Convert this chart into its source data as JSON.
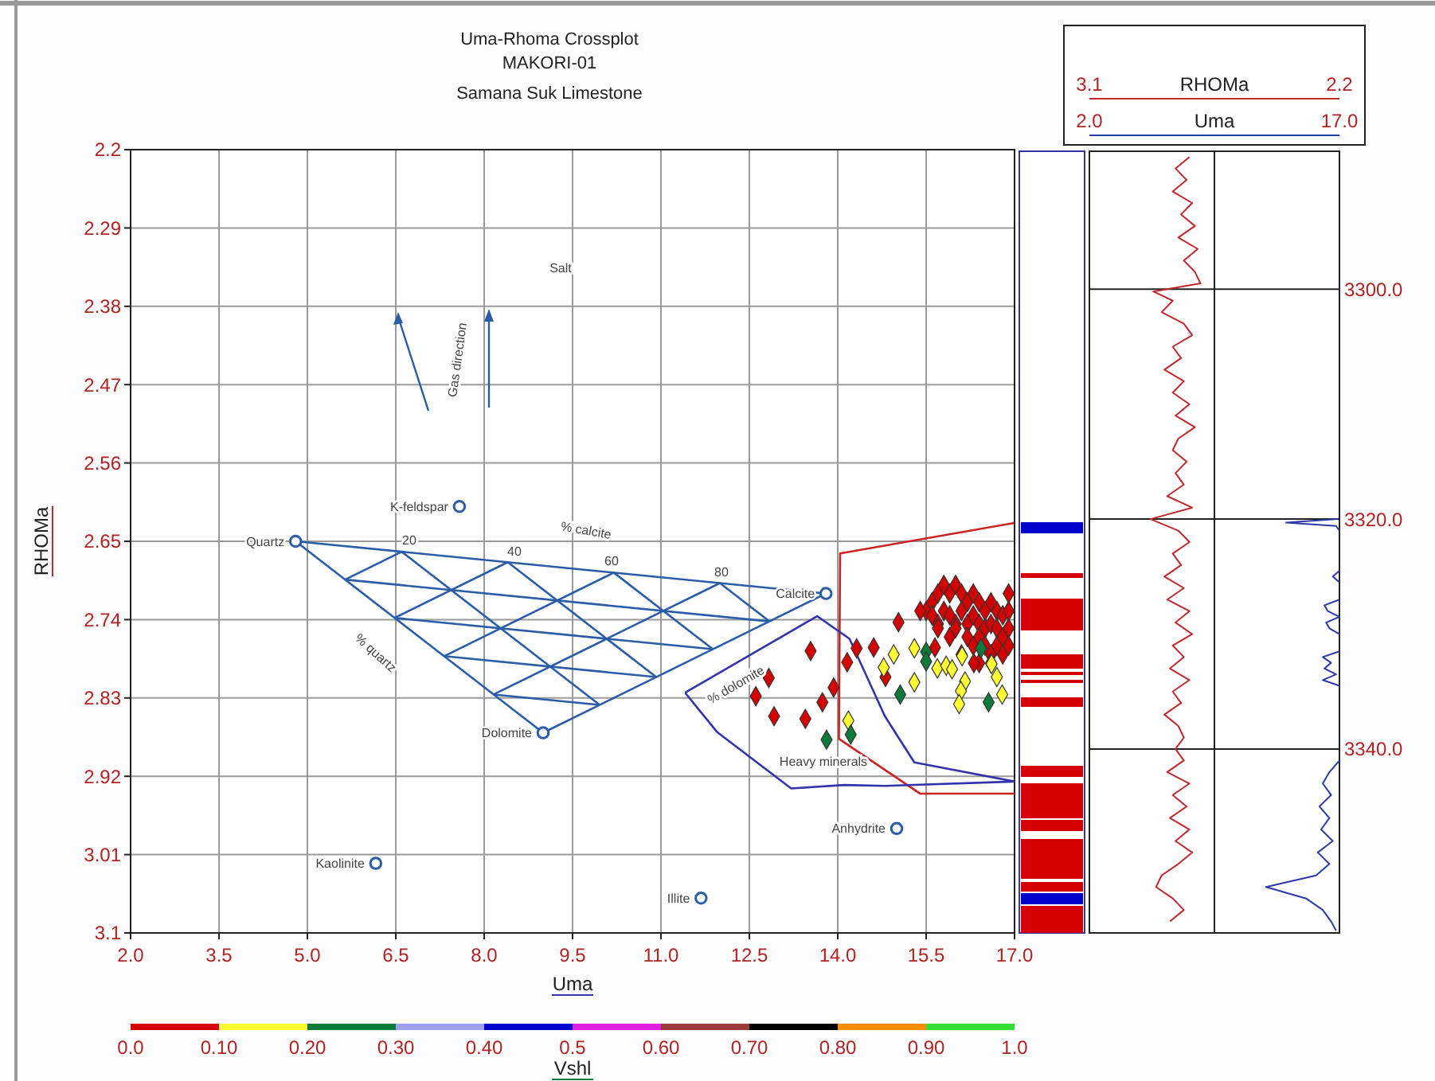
{
  "chart_data": [
    {
      "type": "scatter",
      "title": "Uma-Rhoma Crossplot",
      "subtitle": "MAKORI-01",
      "xlabel": "Uma",
      "ylabel": "RHOMa",
      "clabel": "Vshl",
      "grid": true,
      "xlim": [
        2.0,
        17.0
      ],
      "ylim": [
        3.1,
        2.2
      ],
      "xticks": [
        {
          "value": 2,
          "label": "2.0"
        },
        3.5,
        {
          "value": 5,
          "label": "5.0"
        },
        6.5,
        {
          "value": 8,
          "label": "8.0"
        },
        9.5,
        {
          "value": 11,
          "label": "11.0"
        },
        12.5,
        {
          "value": 14,
          "label": "14.0"
        },
        15.5,
        {
          "value": 17,
          "label": "17.0"
        }
      ],
      "yticks": [
        2.2,
        2.29,
        2.38,
        2.47,
        2.56,
        2.65,
        2.74,
        2.83,
        2.92,
        3.01,
        3.1
      ],
      "clim": [
        0,
        1
      ],
      "cticks": [
        {
          "value": 0,
          "label": "0.0"
        },
        {
          "value": 0.1,
          "label": "0.10"
        },
        {
          "value": 0.2,
          "label": "0.20"
        },
        {
          "value": 0.3,
          "label": "0.30"
        },
        {
          "value": 0.4,
          "label": "0.40"
        },
        0.5,
        {
          "value": 0.6,
          "label": "0.60"
        },
        {
          "value": 0.7,
          "label": "0.70"
        },
        {
          "value": 0.8,
          "label": "0.80"
        },
        {
          "value": 0.9,
          "label": "0.90"
        },
        {
          "value": 1,
          "label": "1.0"
        }
      ],
      "annotations": [
        "Samana Suk Limestone",
        "Salt",
        "Heavy minerals",
        "Gas direction",
        "% calcite",
        "% quartz",
        "% dolomite",
        "20",
        "40",
        "60",
        "80"
      ],
      "series": [
        {
          "type": "line",
          "color": "#2a5ca8",
          "x": [
            4.8,
            13.8
          ],
          "values": [
            2.65,
            2.71
          ]
        },
        {
          "type": "line",
          "color": "#2a5ca8",
          "x": [
            9.0,
            13.8
          ],
          "values": [
            2.87,
            2.71
          ]
        },
        {
          "type": "line",
          "color": "#2a5ca8",
          "x": [
            4.8,
            9.0
          ],
          "values": [
            2.65,
            2.87
          ]
        },
        {
          "type": "line",
          "color": "#2a5ca8",
          "x": [
            6.6,
            9.96
          ],
          "values": [
            2.662,
            2.838
          ]
        },
        {
          "type": "line",
          "color": "#2a5ca8",
          "x": [
            8.4,
            10.92
          ],
          "values": [
            2.674,
            2.806
          ]
        },
        {
          "type": "line",
          "color": "#2a5ca8",
          "x": [
            10.2,
            11.88
          ],
          "values": [
            2.686,
            2.774
          ]
        },
        {
          "type": "line",
          "color": "#2a5ca8",
          "x": [
            12.0,
            12.84
          ],
          "values": [
            2.698,
            2.742
          ]
        },
        {
          "type": "line",
          "color": "#2a5ca8",
          "x": [
            8.16,
            12.0
          ],
          "values": [
            2.826,
            2.698
          ]
        },
        {
          "type": "line",
          "color": "#2a5ca8",
          "x": [
            7.32,
            10.2
          ],
          "values": [
            2.782,
            2.686
          ]
        },
        {
          "type": "line",
          "color": "#2a5ca8",
          "x": [
            6.48,
            8.4
          ],
          "values": [
            2.738,
            2.674
          ]
        },
        {
          "type": "line",
          "color": "#2a5ca8",
          "x": [
            5.64,
            6.6
          ],
          "values": [
            2.694,
            2.662
          ]
        },
        {
          "type": "line",
          "color": "#2a5ca8",
          "x": [
            5.64,
            12.84
          ],
          "values": [
            2.694,
            2.742
          ]
        },
        {
          "type": "line",
          "color": "#2a5ca8",
          "x": [
            6.48,
            11.88
          ],
          "values": [
            2.738,
            2.774
          ]
        },
        {
          "type": "line",
          "color": "#2a5ca8",
          "x": [
            7.32,
            10.92
          ],
          "values": [
            2.782,
            2.806
          ]
        },
        {
          "type": "line",
          "color": "#2a5ca8",
          "x": [
            8.16,
            9.96
          ],
          "values": [
            2.826,
            2.838
          ]
        },
        {
          "type": "line",
          "color": "#cc2222",
          "x": [
            16.99,
            14.04,
            14.02,
            15.4,
            17.0
          ],
          "values": [
            2.629,
            2.664,
            2.877,
            2.94,
            2.94
          ]
        },
        {
          "type": "line",
          "color": "#3333aa",
          "x": [
            11.41,
            13.65,
            14.2,
            14.8,
            15.3,
            17.0
          ],
          "values": [
            2.824,
            2.736,
            2.762,
            2.851,
            2.904,
            2.926
          ]
        },
        {
          "type": "line",
          "color": "#3333aa",
          "x": [
            11.41,
            11.95,
            13.21,
            14.11,
            14.8,
            17.0
          ],
          "values": [
            2.824,
            2.869,
            2.934,
            2.93,
            2.931,
            2.926
          ]
        },
        {
          "type": "scatter",
          "name": "Quartz",
          "color": "#2a5ca8",
          "marker": "circle",
          "x": [
            4.8
          ],
          "values": [
            2.65
          ]
        },
        {
          "type": "scatter",
          "name": "Calcite",
          "color": "#2a5ca8",
          "marker": "circle",
          "x": [
            13.8
          ],
          "values": [
            2.71
          ]
        },
        {
          "type": "scatter",
          "name": "Dolomite",
          "color": "#2a5ca8",
          "marker": "circle",
          "x": [
            9.0
          ],
          "values": [
            2.87
          ]
        },
        {
          "type": "scatter",
          "name": "K-feldspar",
          "color": "#2a5ca8",
          "marker": "circle",
          "x": [
            7.58
          ],
          "values": [
            2.61
          ]
        },
        {
          "type": "scatter",
          "name": "Anhydrite",
          "color": "#2a5ca8",
          "marker": "circle",
          "x": [
            15.0
          ],
          "values": [
            2.98
          ]
        },
        {
          "type": "scatter",
          "name": "Kaolinite",
          "color": "#2a5ca8",
          "marker": "circle",
          "x": [
            6.16
          ],
          "values": [
            3.02
          ]
        },
        {
          "type": "scatter",
          "name": "Illite",
          "color": "#2a5ca8",
          "marker": "circle",
          "x": [
            11.68
          ],
          "values": [
            3.06
          ]
        },
        {
          "type": "scatter",
          "marker": "diamond",
          "x": [
            15.5,
            15.6,
            15.7,
            15.8,
            15.9,
            16.0,
            16.1,
            16.2,
            16.3,
            16.4,
            16.5,
            16.6,
            16.7,
            16.8,
            16.9,
            15.6,
            15.7,
            15.8,
            15.9,
            16.0,
            16.1,
            16.2,
            16.3,
            16.4,
            16.5,
            16.6,
            16.7,
            16.8,
            16.9,
            15.9,
            16.0,
            16.2,
            16.3,
            16.4,
            16.5,
            16.6,
            16.7,
            16.8,
            16.9,
            16.1,
            16.4,
            16.6,
            15.7,
            15.4,
            16.9,
            15.03,
            13.54,
            14.32,
            14.61,
            14.16,
            12.83,
            12.61,
            13.93,
            13.74,
            12.92,
            13.45,
            14.81,
            15.65,
            16.31,
            14.78,
            15.3,
            14.95,
            15.3,
            15.69,
            15.84,
            15.94,
            16.16,
            16.09,
            16.06,
            16.7,
            16.79,
            16.61,
            16.11,
            14.18,
            15.5,
            15.5,
            15.06,
            16.56,
            14.22,
            13.81,
            16.43
          ],
          "values": [
            2.73,
            2.72,
            2.71,
            2.7,
            2.71,
            2.7,
            2.71,
            2.72,
            2.71,
            2.72,
            2.73,
            2.72,
            2.73,
            2.735,
            2.73,
            2.735,
            2.745,
            2.73,
            2.735,
            2.745,
            2.73,
            2.745,
            2.735,
            2.745,
            2.75,
            2.745,
            2.75,
            2.76,
            2.75,
            2.76,
            2.75,
            2.76,
            2.77,
            2.76,
            2.77,
            2.78,
            2.77,
            2.78,
            2.77,
            2.78,
            2.79,
            2.79,
            2.75,
            2.73,
            2.71,
            2.743,
            2.776,
            2.773,
            2.772,
            2.789,
            2.807,
            2.828,
            2.818,
            2.835,
            2.851,
            2.854,
            2.806,
            2.772,
            2.79,
            2.795,
            2.773,
            2.78,
            2.812,
            2.796,
            2.793,
            2.797,
            2.811,
            2.822,
            2.837,
            2.806,
            2.826,
            2.791,
            2.782,
            2.856,
            2.777,
            2.788,
            2.826,
            2.835,
            2.872,
            2.878,
            2.773
          ],
          "colors": [
            "#d40000",
            "#d40000",
            "#d40000",
            "#d40000",
            "#d40000",
            "#d40000",
            "#d40000",
            "#d40000",
            "#d40000",
            "#d40000",
            "#d40000",
            "#d40000",
            "#d40000",
            "#d40000",
            "#d40000",
            "#d40000",
            "#d40000",
            "#d40000",
            "#d40000",
            "#d40000",
            "#d40000",
            "#d40000",
            "#d40000",
            "#d40000",
            "#d40000",
            "#d40000",
            "#d40000",
            "#d40000",
            "#d40000",
            "#d40000",
            "#d40000",
            "#d40000",
            "#d40000",
            "#d40000",
            "#d40000",
            "#d40000",
            "#d40000",
            "#d40000",
            "#d40000",
            "#d40000",
            "#d40000",
            "#d40000",
            "#d40000",
            "#d40000",
            "#d40000",
            "#d40000",
            "#d40000",
            "#d40000",
            "#d40000",
            "#d40000",
            "#d40000",
            "#d40000",
            "#d40000",
            "#d40000",
            "#d40000",
            "#d40000",
            "#d40000",
            "#d40000",
            "#d40000",
            "#ffff33",
            "#ffff33",
            "#ffff33",
            "#ffff33",
            "#ffff33",
            "#ffff33",
            "#ffff33",
            "#ffff33",
            "#ffff33",
            "#ffff33",
            "#ffff33",
            "#ffff33",
            "#ffff33",
            "#ffff33",
            "#ffff33",
            "#0b7a3a",
            "#0b7a3a",
            "#0b7a3a",
            "#0b7a3a",
            "#0b7a3a",
            "#0b7a3a",
            "#0b7a3a"
          ]
        }
      ]
    },
    {
      "type": "line",
      "xlabel": "RHOMa",
      "x2label": "Uma",
      "grid": true,
      "xlim": [
        3.1,
        2.2
      ],
      "xticks": [
        3.1,
        {
          "value": 2.65,
          "label": null
        },
        2.2
      ],
      "x2lim": [
        2.0,
        17.0
      ],
      "x2ticks": [
        {
          "value": 2,
          "label": "2.0"
        },
        {
          "value": 17,
          "label": "17.0"
        }
      ],
      "ylim": [
        3356,
        3288
      ],
      "yticks": [
        {
          "value": 3300,
          "label": "3300.0"
        },
        {
          "value": 3320,
          "label": "3320.0"
        },
        {
          "value": 3340,
          "label": "3340.0"
        }
      ],
      "series": [
        {
          "color": "#c0282d",
          "x": [
            2.74,
            2.79,
            2.75,
            2.8,
            2.73,
            2.77,
            2.72,
            2.78,
            2.71,
            2.76,
            2.72,
            2.7,
            2.87,
            2.8,
            2.84,
            2.76,
            2.73,
            2.8,
            2.77,
            2.83,
            2.76,
            2.8,
            2.74,
            2.79,
            2.72,
            2.78,
            2.8,
            2.75,
            2.79,
            2.76,
            2.82,
            2.73,
            2.88,
            2.78,
            2.74,
            2.8,
            2.77,
            2.83,
            2.76,
            2.82,
            2.74,
            2.79,
            2.73,
            2.8,
            2.76,
            2.81,
            2.74,
            2.8,
            2.77,
            2.83,
            2.78,
            2.76,
            2.79,
            2.76,
            2.82,
            2.74,
            2.8,
            2.75,
            2.81,
            2.74,
            2.79,
            2.73,
            2.78,
            2.84,
            2.86,
            2.8,
            2.76,
            2.81
          ],
          "values": [
            3288.5,
            3289.5,
            3290.5,
            3291.5,
            3292.5,
            3293.5,
            3294.5,
            3295.5,
            3296.5,
            3297.5,
            3298.5,
            3299.5,
            3300.2,
            3301,
            3302,
            3303,
            3304,
            3305,
            3306,
            3307,
            3308,
            3309,
            3310,
            3311,
            3312,
            3313,
            3314,
            3315,
            3316,
            3317,
            3318,
            3319,
            3320,
            3321,
            3322,
            3323,
            3324,
            3325,
            3326,
            3327,
            3328,
            3329,
            3330,
            3331,
            3332,
            3333,
            3334,
            3335,
            3336,
            3337,
            3338,
            3339,
            3340,
            3341,
            3342,
            3343,
            3344,
            3345,
            3346,
            3347,
            3348,
            3349,
            3350,
            3351,
            3352,
            3353,
            3354,
            3355
          ]
        },
        {
          "color": "#2b3aa8",
          "axis": "x2",
          "x": [
            16.9,
            13.8,
            16.8,
            17.0
          ],
          "values": [
            3320.0,
            3320.3,
            3320.6,
            3321
          ]
        },
        {
          "color": "#2b3aa8",
          "axis": "x2",
          "x": [
            17.0,
            16.6,
            17.0
          ],
          "values": [
            3324.5,
            3325,
            3325.5
          ]
        },
        {
          "color": "#2b3aa8",
          "axis": "x2",
          "x": [
            17.0,
            16.1,
            16.3,
            17.0,
            16.2,
            16.4,
            17.0
          ],
          "values": [
            3327,
            3327.5,
            3328,
            3328.5,
            3329,
            3329.5,
            3330
          ]
        },
        {
          "color": "#2b3aa8",
          "axis": "x2",
          "x": [
            17.0,
            16.0,
            16.5,
            16.1,
            16.8,
            16.0,
            17.0
          ],
          "values": [
            3331.5,
            3332,
            3332.5,
            3333,
            3333.5,
            3334,
            3334.5
          ]
        },
        {
          "color": "#2b3aa8",
          "axis": "x2",
          "x": [
            17.0,
            16.4,
            16.0,
            16.5,
            15.8,
            16.4,
            15.9,
            16.6,
            15.7,
            16.4,
            15.6,
            12.6,
            15.0,
            16.0,
            16.5,
            16.8
          ],
          "values": [
            3341,
            3342,
            3343,
            3344,
            3345,
            3346,
            3347,
            3348,
            3349,
            3350,
            3351,
            3352,
            3353,
            3354,
            3355,
            3355.8
          ]
        }
      ]
    }
  ]
}
